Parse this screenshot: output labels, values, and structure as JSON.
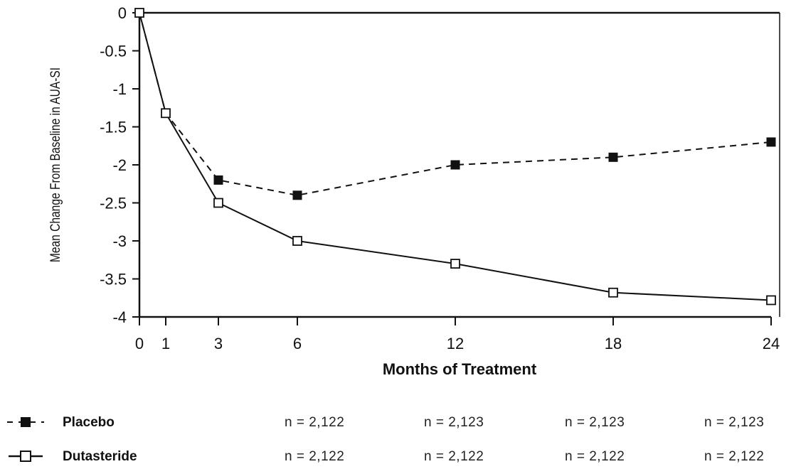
{
  "chart_data": {
    "type": "line",
    "xlabel": "Months of Treatment",
    "ylabel": "Mean Change From Baseline in AUA-SI",
    "x_ticks": [
      "0",
      "1",
      "3",
      "6",
      "12",
      "18",
      "24"
    ],
    "y_ticks": [
      "0",
      "-0.5",
      "-1",
      "-1.5",
      "-2",
      "-2.5",
      "-3",
      "-3.5",
      "-4"
    ],
    "xlim": [
      0,
      24
    ],
    "ylim": [
      -4,
      0
    ],
    "x": [
      0,
      1,
      3,
      6,
      12,
      18,
      24
    ],
    "series": [
      {
        "name": "Placebo",
        "style": "dashed",
        "marker": "filled-square",
        "values": [
          0,
          -1.32,
          -2.2,
          -2.4,
          -2.0,
          -1.9,
          -1.7
        ]
      },
      {
        "name": "Dutasteride",
        "style": "solid",
        "marker": "open-square",
        "values": [
          0,
          -1.32,
          -2.5,
          -3.0,
          -3.3,
          -3.68,
          -3.78
        ]
      }
    ],
    "grid": false,
    "legend_placement": "bottom"
  },
  "legend": {
    "rows": [
      {
        "name": "Placebo",
        "n": [
          "n = 2,122",
          "n = 2,123",
          "n = 2,123",
          "n = 2,123"
        ]
      },
      {
        "name": "Dutasteride",
        "n": [
          "n = 2,122",
          "n = 2,122",
          "n = 2,122",
          "n = 2,122"
        ]
      }
    ]
  },
  "colors": {
    "ink": "#111111",
    "background": "#ffffff"
  }
}
